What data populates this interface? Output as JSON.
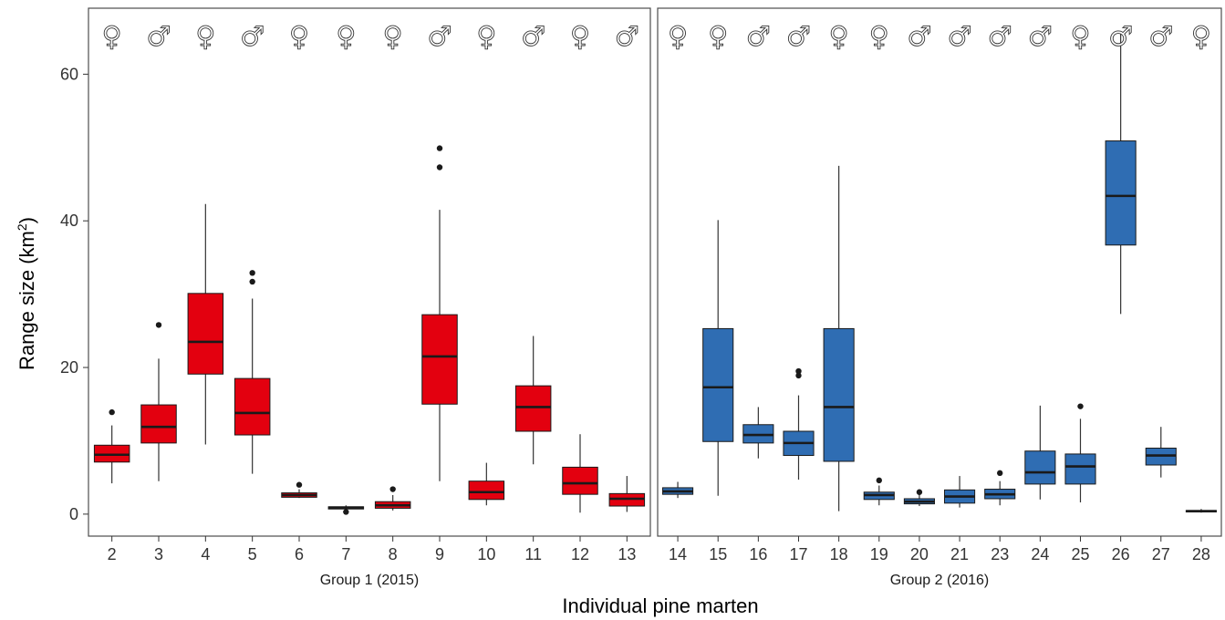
{
  "chart_data": {
    "type": "boxplot",
    "ylabel": "Range size (km²)",
    "ylabel_main": "Range size (km",
    "ylabel_sup": "2",
    "ylabel_close": ")",
    "xlabel": "Individual pine marten",
    "ylim": [
      -3,
      69
    ],
    "yticks": [
      0,
      20,
      40,
      60
    ],
    "grid": false,
    "colors": {
      "group1": "#e3000f",
      "group2": "#2f6db3",
      "outline": "#1a1a1a",
      "median": "#1a1a1a"
    },
    "symbols": {
      "female": "♀",
      "male": "♂"
    },
    "panels": [
      {
        "label": "Group 1 (2015)",
        "color": "#e3000f",
        "individuals": [
          {
            "id": "2",
            "sex": "female",
            "min": 4.2,
            "q1": 7.1,
            "median": 8.1,
            "q3": 9.4,
            "max": 12.1,
            "outliers": [
              13.9
            ]
          },
          {
            "id": "3",
            "sex": "male",
            "min": 4.5,
            "q1": 9.7,
            "median": 11.9,
            "q3": 14.9,
            "max": 21.2,
            "outliers": [
              25.8
            ]
          },
          {
            "id": "4",
            "sex": "female",
            "min": 9.5,
            "q1": 19.1,
            "median": 23.5,
            "q3": 30.1,
            "max": 42.3,
            "outliers": []
          },
          {
            "id": "5",
            "sex": "male",
            "min": 5.5,
            "q1": 10.8,
            "median": 13.8,
            "q3": 18.5,
            "max": 29.4,
            "outliers": [
              31.7,
              32.9
            ]
          },
          {
            "id": "6",
            "sex": "female",
            "min": 2.2,
            "q1": 2.3,
            "median": 2.6,
            "q3": 2.9,
            "max": 3.4,
            "outliers": [
              4.0
            ]
          },
          {
            "id": "7",
            "sex": "female",
            "min": 0.6,
            "q1": 0.7,
            "median": 0.9,
            "q3": 1.0,
            "max": 1.2,
            "outliers": [
              0.3
            ]
          },
          {
            "id": "8",
            "sex": "female",
            "min": 0.5,
            "q1": 0.8,
            "median": 1.2,
            "q3": 1.7,
            "max": 2.6,
            "outliers": [
              3.4
            ]
          },
          {
            "id": "9",
            "sex": "male",
            "min": 4.5,
            "q1": 15.0,
            "median": 21.5,
            "q3": 27.2,
            "max": 41.5,
            "outliers": [
              47.3,
              49.9
            ]
          },
          {
            "id": "10",
            "sex": "female",
            "min": 1.2,
            "q1": 2.0,
            "median": 3.0,
            "q3": 4.5,
            "max": 7.0,
            "outliers": []
          },
          {
            "id": "11",
            "sex": "male",
            "min": 6.8,
            "q1": 11.3,
            "median": 14.6,
            "q3": 17.5,
            "max": 24.3,
            "outliers": []
          },
          {
            "id": "12",
            "sex": "female",
            "min": 0.2,
            "q1": 2.7,
            "median": 4.2,
            "q3": 6.4,
            "max": 10.9,
            "outliers": []
          },
          {
            "id": "13",
            "sex": "male",
            "min": 0.3,
            "q1": 1.1,
            "median": 2.1,
            "q3": 2.8,
            "max": 5.2,
            "outliers": []
          }
        ]
      },
      {
        "label": "Group 2 (2016)",
        "color": "#2f6db3",
        "individuals": [
          {
            "id": "14",
            "sex": "female",
            "min": 2.2,
            "q1": 2.7,
            "median": 3.1,
            "q3": 3.6,
            "max": 4.4,
            "outliers": []
          },
          {
            "id": "15",
            "sex": "female",
            "min": 2.5,
            "q1": 9.9,
            "median": 17.3,
            "q3": 25.3,
            "max": 40.1,
            "outliers": []
          },
          {
            "id": "16",
            "sex": "male",
            "min": 7.6,
            "q1": 9.7,
            "median": 10.8,
            "q3": 12.2,
            "max": 14.6,
            "outliers": []
          },
          {
            "id": "17",
            "sex": "male",
            "min": 4.7,
            "q1": 8.0,
            "median": 9.7,
            "q3": 11.3,
            "max": 16.2,
            "outliers": [
              18.9,
              19.5
            ]
          },
          {
            "id": "18",
            "sex": "female",
            "min": 0.4,
            "q1": 7.2,
            "median": 14.6,
            "q3": 25.3,
            "max": 47.5,
            "outliers": []
          },
          {
            "id": "19",
            "sex": "female",
            "min": 1.2,
            "q1": 2.0,
            "median": 2.6,
            "q3": 3.0,
            "max": 3.9,
            "outliers": [
              4.6
            ]
          },
          {
            "id": "20",
            "sex": "male",
            "min": 1.1,
            "q1": 1.4,
            "median": 1.7,
            "q3": 2.1,
            "max": 2.7,
            "outliers": [
              3.0
            ]
          },
          {
            "id": "21",
            "sex": "male",
            "min": 0.9,
            "q1": 1.5,
            "median": 2.4,
            "q3": 3.3,
            "max": 5.2,
            "outliers": []
          },
          {
            "id": "23",
            "sex": "male",
            "min": 1.2,
            "q1": 2.1,
            "median": 2.7,
            "q3": 3.4,
            "max": 4.5,
            "outliers": [
              5.6
            ]
          },
          {
            "id": "24",
            "sex": "male",
            "min": 2.0,
            "q1": 4.1,
            "median": 5.7,
            "q3": 8.6,
            "max": 14.8,
            "outliers": []
          },
          {
            "id": "25",
            "sex": "female",
            "min": 1.6,
            "q1": 4.1,
            "median": 6.5,
            "q3": 8.2,
            "max": 13.0,
            "outliers": [
              14.7
            ]
          },
          {
            "id": "26",
            "sex": "male",
            "min": 27.3,
            "q1": 36.7,
            "median": 43.4,
            "q3": 50.9,
            "max": 65.9,
            "outliers": []
          },
          {
            "id": "27",
            "sex": "male",
            "min": 5.0,
            "q1": 6.7,
            "median": 8.0,
            "q3": 9.0,
            "max": 11.9,
            "outliers": []
          },
          {
            "id": "28",
            "sex": "female",
            "min": 0.2,
            "q1": 0.3,
            "median": 0.4,
            "q3": 0.5,
            "max": 0.7,
            "outliers": []
          }
        ]
      }
    ]
  }
}
